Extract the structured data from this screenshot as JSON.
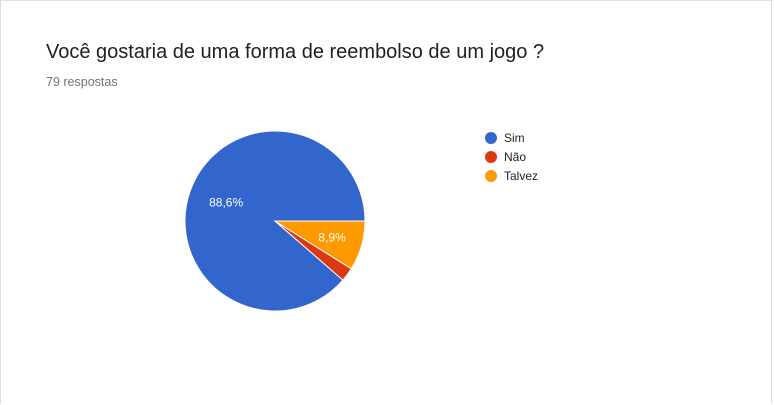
{
  "question": {
    "title": "Você gostaria de uma forma de reembolso de um jogo ?",
    "responses": "79 respostas"
  },
  "chart_data": {
    "type": "pie",
    "title": "Você gostaria de uma forma de reembolso de um jogo ?",
    "subtitle": "79 respostas",
    "legend_position": "right",
    "slices": [
      {
        "label": "Sim",
        "value": 88.6,
        "display": "88,6%",
        "color": "#3366cc"
      },
      {
        "label": "Não",
        "value": 2.5,
        "display": "",
        "color": "#dc3912"
      },
      {
        "label": "Talvez",
        "value": 8.9,
        "display": "8,9%",
        "color": "#ff9900"
      }
    ]
  }
}
